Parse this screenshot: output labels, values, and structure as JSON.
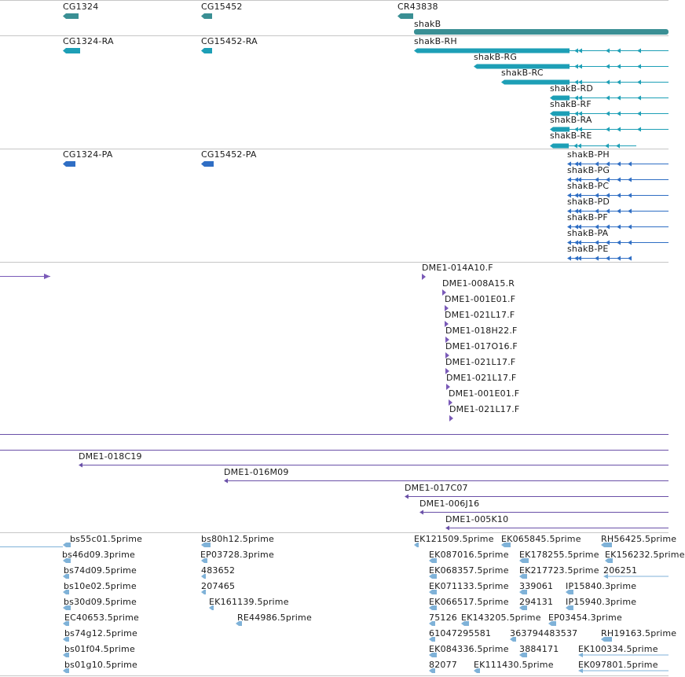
{
  "gene_track": {
    "features": [
      {
        "label": "CG1324"
      },
      {
        "label": "CG15452"
      },
      {
        "label": "CR43838"
      },
      {
        "label": "shakB"
      }
    ]
  },
  "transcript_track": {
    "features": [
      {
        "label": "CG1324-RA"
      },
      {
        "label": "CG15452-RA"
      },
      {
        "label": "shakB-RH"
      },
      {
        "label": "shakB-RG"
      },
      {
        "label": "shakB-RC"
      },
      {
        "label": "shakB-RD"
      },
      {
        "label": "shakB-RF"
      },
      {
        "label": "shakB-RA"
      },
      {
        "label": "shakB-RE"
      }
    ]
  },
  "protein_track": {
    "features": [
      {
        "label": "CG1324-PA"
      },
      {
        "label": "CG15452-PA"
      },
      {
        "label": "shakB-PH"
      },
      {
        "label": "shakB-PG"
      },
      {
        "label": "shakB-PC"
      },
      {
        "label": "shakB-PD"
      },
      {
        "label": "shakB-PF"
      },
      {
        "label": "shakB-PA"
      },
      {
        "label": "shakB-PE"
      }
    ]
  },
  "bac_end_track": {
    "features": [
      {
        "label": "DME1-014A10.F"
      },
      {
        "label": "DME1-008A15.R"
      },
      {
        "label": "DME1-001E01.F"
      },
      {
        "label": "DME1-021L17.F"
      },
      {
        "label": "DME1-018H22.F"
      },
      {
        "label": "DME1-017O16.F"
      },
      {
        "label": "DME1-021L17.F"
      },
      {
        "label": "DME1-021L17.F"
      },
      {
        "label": "DME1-001E01.F"
      },
      {
        "label": "DME1-021L17.F"
      }
    ]
  },
  "bac_clone_track": {
    "features": [
      {
        "label": "DME1-018C19"
      },
      {
        "label": "DME1-016M09"
      },
      {
        "label": "DME1-017C07"
      },
      {
        "label": "DME1-006J16"
      },
      {
        "label": "DME1-005K10"
      }
    ]
  },
  "est_track": {
    "features": [
      {
        "label": "bs55c01.5prime"
      },
      {
        "label": "bs46d09.3prime"
      },
      {
        "label": "bs74d09.5prime"
      },
      {
        "label": "bs10e02.5prime"
      },
      {
        "label": "bs30d09.5prime"
      },
      {
        "label": "EC40653.5prime"
      },
      {
        "label": "bs74g12.5prime"
      },
      {
        "label": "bs01f04.5prime"
      },
      {
        "label": "bs01g10.5prime"
      },
      {
        "label": "bs80h12.5prime"
      },
      {
        "label": "EP03728.3prime"
      },
      {
        "label": "483652"
      },
      {
        "label": "207465"
      },
      {
        "label": "EK161139.5prime"
      },
      {
        "label": "RE44986.5prime"
      },
      {
        "label": "EK121509.5prime"
      },
      {
        "label": "EK065845.5prime"
      },
      {
        "label": "RH56425.5prime"
      },
      {
        "label": "EK087016.5prime"
      },
      {
        "label": "EK178255.5prime"
      },
      {
        "label": "EK156232.5prime"
      },
      {
        "label": "EK068357.5prime"
      },
      {
        "label": "EK217723.5prime"
      },
      {
        "label": "206251"
      },
      {
        "label": "EK071133.5prime"
      },
      {
        "label": "339061"
      },
      {
        "label": "IP15840.3prime"
      },
      {
        "label": "EK066517.5prime"
      },
      {
        "label": "294131"
      },
      {
        "label": "IP15940.3prime"
      },
      {
        "label": "75126"
      },
      {
        "label": "EK143205.5prime"
      },
      {
        "label": "EP03454.3prime"
      },
      {
        "label": "61047295581"
      },
      {
        "label": "363794483537"
      },
      {
        "label": "RH19163.5prime"
      },
      {
        "label": "EK084336.5prime"
      },
      {
        "label": "3884171"
      },
      {
        "label": "EK100334.5prime"
      },
      {
        "label": "82077"
      },
      {
        "label": "EK111430.5prime"
      },
      {
        "label": "EK097801.5prime"
      }
    ]
  },
  "colors": {
    "gene": "#3a8f94",
    "transcript": "#1d9fb6",
    "protein": "#2f6ec4",
    "bac_end": "#7a5ab8",
    "bac_clone": "#6a50a8",
    "est": "#7fb2d8",
    "separator": "#c6c6c6",
    "text": "#1a1a1a"
  }
}
